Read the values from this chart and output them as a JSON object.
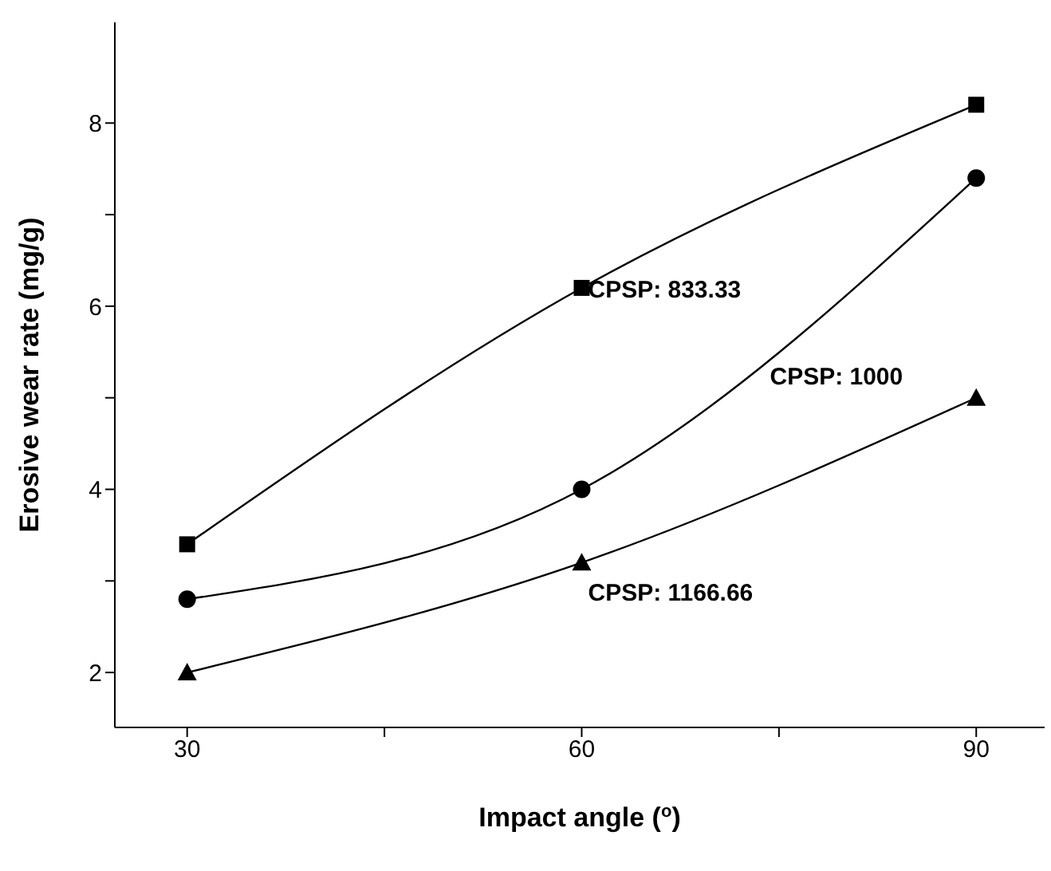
{
  "chart_data": {
    "type": "line",
    "xlabel": "Impact angle ($^{o}$)",
    "ylabel": "Erosive wear rate (mg/g)",
    "x": [
      30,
      60,
      90
    ],
    "series": [
      {
        "name": "CPSP: 833.33",
        "color": "#000000",
        "marker": "square",
        "values": [
          3.4,
          6.2,
          8.2
        ]
      },
      {
        "name": "CPSP: 1000",
        "color": "#000000",
        "marker": "circle",
        "values": [
          2.8,
          4.0,
          7.4
        ]
      },
      {
        "name": "CPSP: 1166.66",
        "color": "#000000",
        "marker": "triangle",
        "values": [
          2.0,
          3.2,
          5.0
        ]
      }
    ],
    "xlim": [
      24.5,
      95.2
    ],
    "xticks": [
      30,
      {
        "value": 45,
        "label": null
      },
      60,
      {
        "value": 75,
        "label": null
      },
      90
    ],
    "ylim": [
      1.4,
      9.1
    ],
    "yticks": [
      2,
      {
        "value": 3,
        "label": null
      },
      4,
      {
        "value": 5,
        "label": null
      },
      6,
      {
        "value": 7,
        "label": null
      },
      8
    ],
    "grid": false,
    "legend": false,
    "line_style": "solid"
  }
}
